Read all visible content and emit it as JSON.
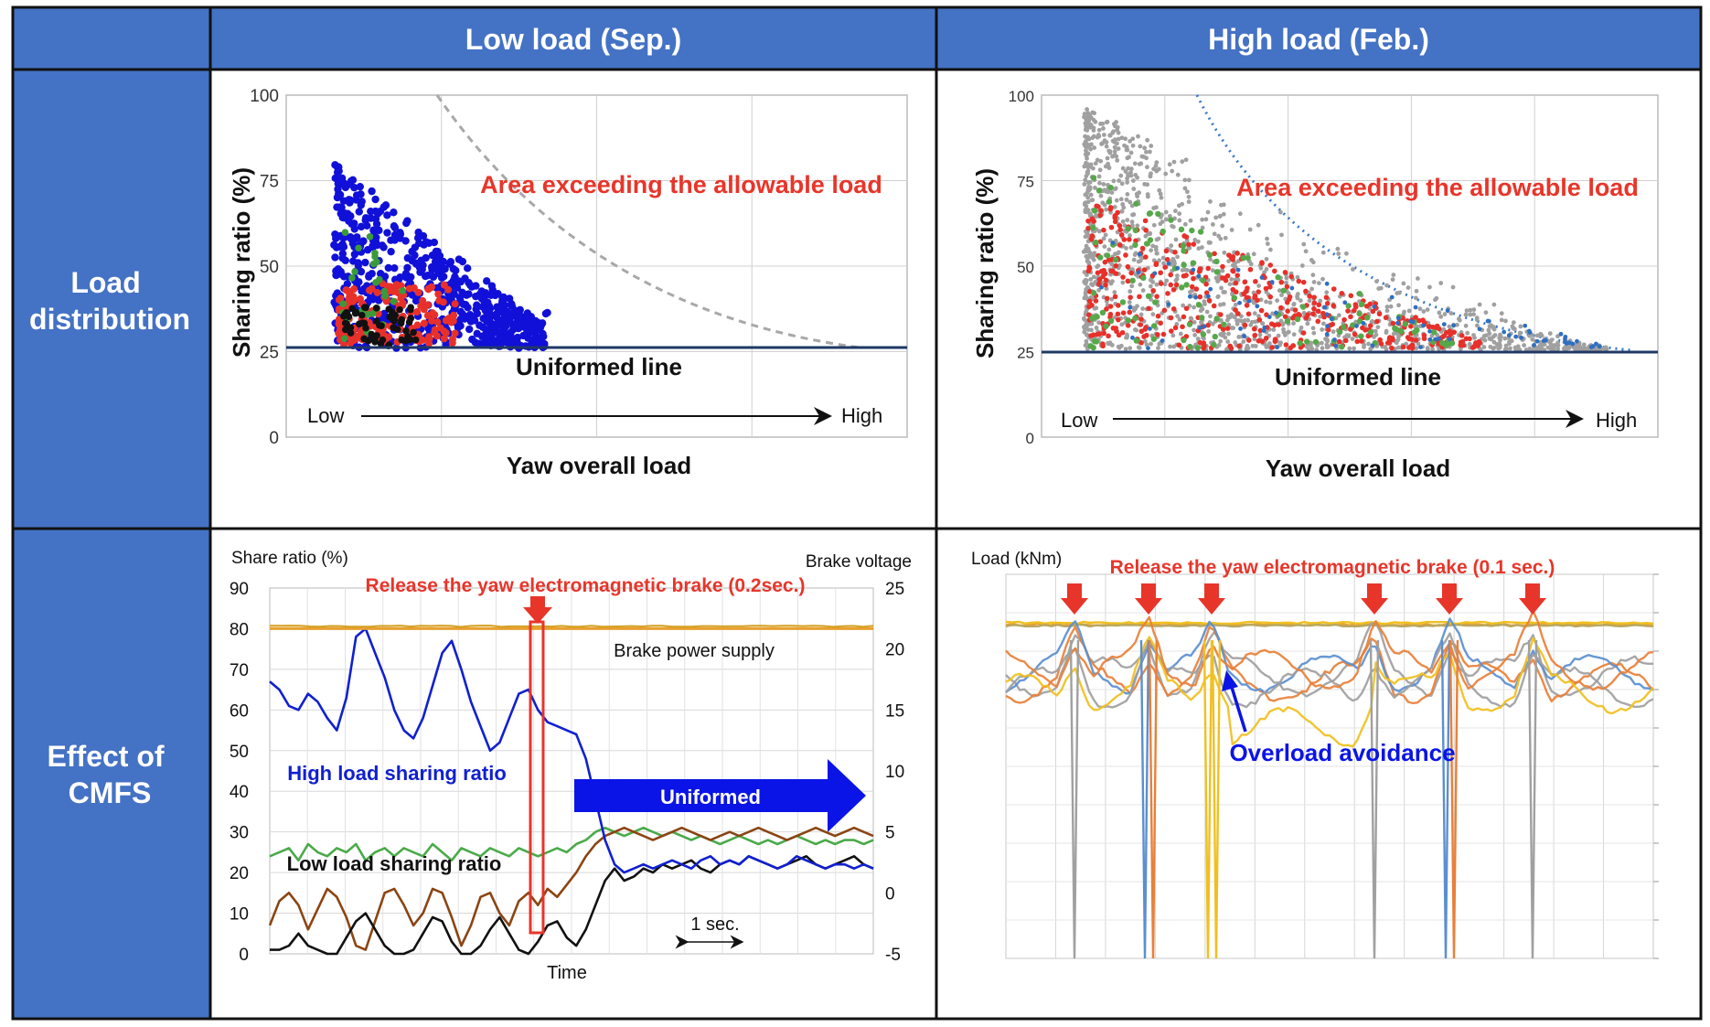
{
  "header": {
    "low_load_title": "Low load (Sep.)",
    "high_load_title": "High load (Feb.)"
  },
  "rows": {
    "load_distribution": [
      "Load",
      "distribution"
    ],
    "effect_of_cmfs": [
      "Effect of",
      "CMFS"
    ]
  },
  "colors": {
    "header_blue": "#4472c4",
    "annotation_red": "#e8352a",
    "uniformed_blue": "#0a14e6",
    "navy_line": "#1f3864"
  },
  "chart_data": [
    {
      "id": "low_scatter",
      "type": "scatter",
      "title": "",
      "ylabel": "Sharing ratio (%)",
      "xlabel": "Yaw overall load",
      "ylim": [
        0,
        100
      ],
      "yticks": [
        "0",
        "25",
        "50",
        "75",
        "100"
      ],
      "x_low_label": "Low",
      "x_high_label": "High",
      "uniformed_label": "Uniformed line",
      "uniformed_value": 25,
      "area_label": "Area exceeding the allowable load",
      "series": [
        {
          "name": "blue",
          "color": "#1010d8"
        },
        {
          "name": "red",
          "color": "#e8302a"
        },
        {
          "name": "green",
          "color": "#3a9a3a"
        },
        {
          "name": "black",
          "color": "#111111"
        }
      ]
    },
    {
      "id": "high_scatter",
      "type": "scatter",
      "title": "",
      "ylabel": "Sharing ratio (%)",
      "xlabel": "Yaw overall load",
      "ylim": [
        0,
        100
      ],
      "yticks": [
        "0",
        "25",
        "50",
        "75",
        "100"
      ],
      "x_low_label": "Low",
      "x_high_label": "High",
      "uniformed_label": "Uniformed line",
      "uniformed_value": 25,
      "area_label": "Area exceeding the allowable load",
      "series": [
        {
          "name": "gray",
          "color": "#a0a0a0"
        },
        {
          "name": "red",
          "color": "#e8302a"
        },
        {
          "name": "green",
          "color": "#56a84a"
        },
        {
          "name": "blue",
          "color": "#2f6fc0"
        }
      ]
    },
    {
      "id": "low_timeseries",
      "type": "line",
      "ylabel_left": "Share ratio (%)",
      "ylabel_right": "Brake voltage",
      "xlabel": "Time",
      "left_ticks": [
        "0",
        "10",
        "20",
        "30",
        "40",
        "50",
        "60",
        "70",
        "80",
        "90"
      ],
      "right_ticks": [
        "-5",
        "0",
        "5",
        "10",
        "15",
        "20",
        "25"
      ],
      "release_label": "Release the yaw electromagnetic brake (0.2sec.)",
      "brake_supply_label": "Brake power supply",
      "high_label": "High load sharing ratio",
      "low_label": "Low load sharing ratio",
      "uniformed_arrow_label": "Uniformed",
      "scale_label": "1 sec.",
      "series": [
        {
          "name": "High load sharing ratio",
          "color": "#1020d0",
          "values": [
            67,
            65,
            61,
            60,
            64,
            62,
            58,
            55,
            63,
            78,
            80,
            74,
            68,
            60,
            55,
            53,
            58,
            66,
            74,
            77,
            70,
            62,
            56,
            50,
            52,
            58,
            64,
            65,
            60,
            57,
            56,
            55,
            54,
            48,
            38,
            28,
            22,
            20,
            21,
            22,
            21,
            22,
            23,
            22,
            21,
            23,
            24,
            22,
            23,
            22,
            24,
            23,
            22,
            21,
            22,
            24,
            23,
            22,
            21,
            22,
            22,
            21,
            22,
            21
          ]
        },
        {
          "name": "Low load sharing ratio",
          "color": "#111111",
          "values": [
            1,
            1,
            2,
            5,
            2,
            1,
            0,
            0,
            4,
            8,
            10,
            6,
            2,
            0,
            0,
            1,
            5,
            9,
            8,
            3,
            0,
            0,
            2,
            6,
            9,
            5,
            1,
            0,
            3,
            7,
            8,
            4,
            2,
            6,
            12,
            18,
            21,
            18,
            19,
            21,
            20,
            22,
            21,
            22,
            23,
            21,
            20,
            22,
            23,
            22,
            24,
            23,
            22,
            21,
            22,
            23,
            24,
            22,
            21,
            22,
            23,
            24,
            22,
            21
          ]
        },
        {
          "name": "Brown",
          "color": "#8b4513",
          "values": [
            7,
            13,
            15,
            12,
            6,
            11,
            16,
            14,
            9,
            2,
            1,
            8,
            15,
            16,
            12,
            7,
            10,
            16,
            15,
            9,
            2,
            7,
            14,
            15,
            10,
            7,
            13,
            15,
            12,
            16,
            14,
            17,
            20,
            24,
            27,
            29,
            30,
            31,
            30,
            29,
            28,
            29,
            30,
            31,
            30,
            29,
            28,
            29,
            30,
            29,
            30,
            31,
            30,
            29,
            28,
            29,
            30,
            31,
            30,
            29,
            30,
            31,
            30,
            29
          ]
        },
        {
          "name": "Green",
          "color": "#4aaa4a",
          "values": [
            24,
            25,
            26,
            23,
            27,
            25,
            24,
            26,
            25,
            27,
            23,
            25,
            26,
            24,
            26,
            25,
            24,
            27,
            25,
            23,
            26,
            25,
            24,
            26,
            25,
            24,
            26,
            25,
            24,
            25,
            26,
            25,
            27,
            28,
            30,
            31,
            30,
            29,
            30,
            31,
            30,
            29,
            30,
            29,
            28,
            29,
            28,
            27,
            28,
            29,
            28,
            27,
            28,
            27,
            28,
            29,
            28,
            27,
            28,
            27,
            28,
            28,
            27,
            28
          ]
        },
        {
          "name": "Brake power supply",
          "color": "#e8a030",
          "values": [
            80,
            80,
            80,
            80,
            80,
            80,
            80,
            80,
            80,
            80,
            80,
            80,
            80,
            80,
            80,
            80,
            80,
            80,
            80,
            80,
            80,
            80,
            80,
            80,
            80,
            80,
            80,
            80,
            80,
            80,
            80,
            80,
            80,
            80,
            80,
            80,
            80,
            80,
            80,
            80,
            80,
            80,
            80,
            80,
            80,
            80,
            80,
            80,
            80,
            80,
            80,
            80,
            80,
            80,
            80,
            80,
            80,
            80,
            80,
            80,
            80,
            80,
            80,
            80
          ]
        }
      ]
    },
    {
      "id": "high_timeseries",
      "type": "line",
      "ylabel_left": "Load (kNm)",
      "release_label": "Release the yaw electromagnetic brake (0.1 sec.)",
      "overload_label": "Overload avoidance",
      "series": [
        {
          "name": "gray",
          "color": "#a0a0a0"
        },
        {
          "name": "orange",
          "color": "#e8803a"
        },
        {
          "name": "blue",
          "color": "#5b8fd0"
        },
        {
          "name": "yellow",
          "color": "#f0c020"
        }
      ]
    }
  ]
}
